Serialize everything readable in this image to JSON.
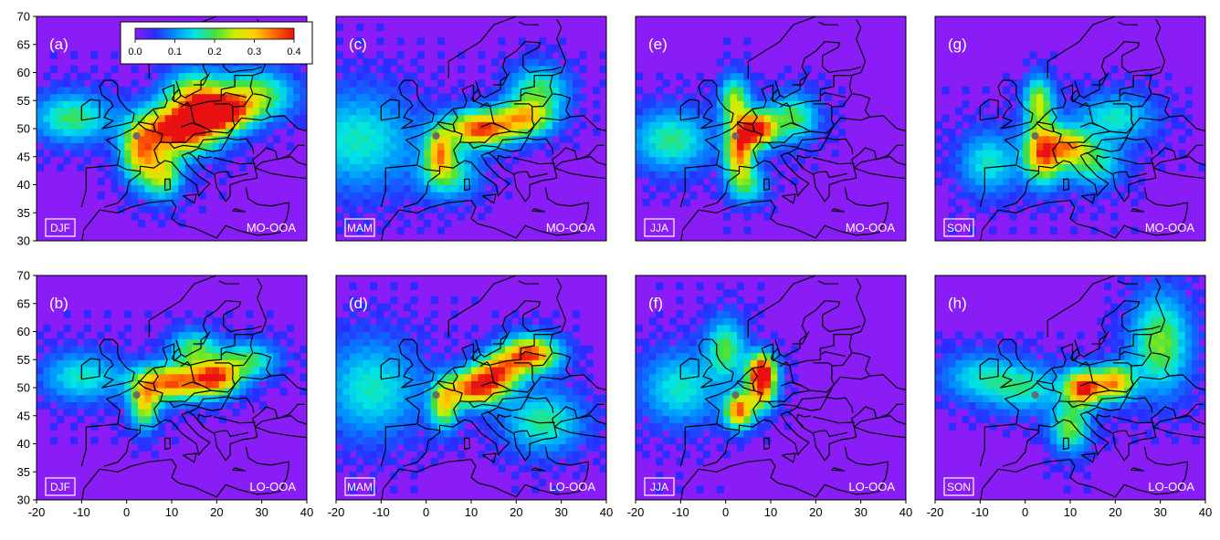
{
  "figure": {
    "colors": {
      "background": "#8a1cf5",
      "coastline": "#000000",
      "site_marker": "#6a6a6a"
    },
    "colormap": [
      "#8a1cf5",
      "#2b2bff",
      "#0090ff",
      "#00e5e5",
      "#40e040",
      "#c8f000",
      "#ffd000",
      "#ff6a00",
      "#e81010"
    ],
    "colorbar": {
      "ticks": [
        "0.0",
        "0.1",
        "0.2",
        "0.3",
        "0.4"
      ],
      "min": 0.0,
      "max": 0.4
    },
    "x_ticks": [
      "-20",
      "-10",
      "0",
      "10",
      "20",
      "30",
      "40"
    ],
    "y_ticks": [
      "70",
      "65",
      "60",
      "55",
      "50",
      "45",
      "40",
      "35",
      "30"
    ],
    "site": {
      "lon": 2.2,
      "lat": 48.7
    },
    "panels": [
      {
        "label": "(a)",
        "season": "DJF",
        "factor": "MO-OOA",
        "hotspots": [
          [
            12,
            50,
            0.42,
            8,
            4
          ],
          [
            21,
            53,
            0.38,
            6,
            3
          ],
          [
            3,
            46,
            0.25,
            4,
            5
          ],
          [
            15,
            56,
            0.22,
            6,
            4
          ],
          [
            28,
            56,
            0.2,
            8,
            4
          ],
          [
            -12,
            52,
            0.15,
            8,
            4
          ],
          [
            8,
            42,
            0.2,
            4,
            4
          ]
        ]
      },
      {
        "label": "(b)",
        "season": "DJF",
        "factor": "LO-OOA",
        "hotspots": [
          [
            10,
            51,
            0.32,
            8,
            3
          ],
          [
            20,
            52,
            0.3,
            5,
            3
          ],
          [
            4,
            47,
            0.22,
            3,
            4
          ],
          [
            15,
            57,
            0.16,
            5,
            3
          ],
          [
            -10,
            52,
            0.12,
            8,
            4
          ],
          [
            27,
            55,
            0.15,
            6,
            3
          ]
        ]
      },
      {
        "label": "(c)",
        "season": "MAM",
        "factor": "MO-OOA",
        "hotspots": [
          [
            12,
            50,
            0.34,
            7,
            3
          ],
          [
            3,
            46,
            0.24,
            3,
            4
          ],
          [
            22,
            52,
            0.24,
            6,
            3
          ],
          [
            -15,
            48,
            0.12,
            12,
            8
          ],
          [
            5,
            42,
            0.14,
            6,
            4
          ],
          [
            25,
            57,
            0.15,
            6,
            4
          ]
        ]
      },
      {
        "label": "(d)",
        "season": "MAM",
        "factor": "LO-OOA",
        "hotspots": [
          [
            11,
            50,
            0.34,
            6,
            3
          ],
          [
            23,
            56,
            0.34,
            6,
            3
          ],
          [
            4,
            47,
            0.22,
            3,
            4
          ],
          [
            16,
            53,
            0.26,
            5,
            3
          ],
          [
            -12,
            50,
            0.12,
            10,
            8
          ],
          [
            26,
            44,
            0.14,
            8,
            5
          ]
        ]
      },
      {
        "label": "(e)",
        "season": "JJA",
        "factor": "MO-OOA",
        "hotspots": [
          [
            7,
            50,
            0.38,
            4,
            3
          ],
          [
            3,
            46,
            0.3,
            3,
            5
          ],
          [
            2,
            55,
            0.2,
            3,
            4
          ],
          [
            -12,
            48,
            0.14,
            8,
            5
          ],
          [
            15,
            52,
            0.16,
            5,
            4
          ],
          [
            5,
            40,
            0.12,
            4,
            3
          ]
        ]
      },
      {
        "label": "(f)",
        "season": "JJA",
        "factor": "LO-OOA",
        "hotspots": [
          [
            8,
            53,
            0.4,
            3,
            3
          ],
          [
            3,
            46,
            0.32,
            3,
            3
          ],
          [
            8,
            49,
            0.24,
            3,
            3
          ],
          [
            0,
            57,
            0.16,
            4,
            5
          ],
          [
            -10,
            50,
            0.12,
            8,
            6
          ]
        ]
      },
      {
        "label": "(g)",
        "season": "SON",
        "factor": "MO-OOA",
        "hotspots": [
          [
            4,
            46,
            0.34,
            4,
            5
          ],
          [
            10,
            47,
            0.22,
            4,
            3
          ],
          [
            3,
            55,
            0.2,
            3,
            4
          ],
          [
            -8,
            44,
            0.12,
            6,
            5
          ],
          [
            15,
            44,
            0.14,
            6,
            4
          ],
          [
            20,
            52,
            0.12,
            8,
            4
          ]
        ]
      },
      {
        "label": "(h)",
        "season": "SON",
        "factor": "LO-OOA",
        "hotspots": [
          [
            13,
            50,
            0.36,
            4,
            3
          ],
          [
            20,
            51,
            0.28,
            4,
            3
          ],
          [
            10,
            43,
            0.18,
            4,
            4
          ],
          [
            30,
            58,
            0.18,
            6,
            8
          ],
          [
            0,
            50,
            0.12,
            8,
            4
          ],
          [
            -10,
            52,
            0.1,
            8,
            4
          ]
        ]
      }
    ]
  }
}
